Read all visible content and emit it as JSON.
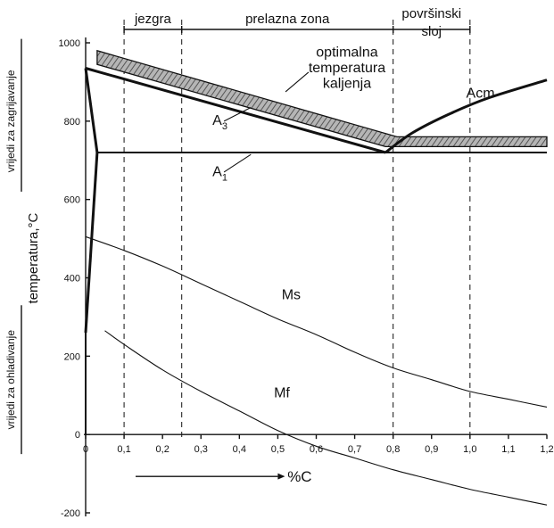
{
  "chart_data": {
    "type": "line",
    "title": "",
    "xlabel": "%C",
    "ylabel": "temperatura,°C",
    "ylabel_heating": "vrijedi za zagrijavanje",
    "ylabel_cooling": "vrijedi za ohladivanje",
    "xlim": [
      0,
      1.2
    ],
    "ylim": [
      -200,
      1000
    ],
    "x_ticks": [
      "0",
      "0,1",
      "0,2",
      "0,3",
      "0,4",
      "0,5",
      "0,6",
      "0,7",
      "0,8",
      "0,9",
      "1,0",
      "1,1",
      "1,2"
    ],
    "x_tick_values": [
      0,
      0.1,
      0.2,
      0.3,
      0.4,
      0.5,
      0.6,
      0.7,
      0.8,
      0.9,
      1.0,
      1.1,
      1.2
    ],
    "y_ticks": [
      "1000",
      "800",
      "600",
      "400",
      "200",
      "0",
      "-200"
    ],
    "y_tick_values": [
      1000,
      800,
      600,
      400,
      200,
      0,
      -200
    ],
    "zones": [
      {
        "label": "jezgra",
        "from": 0.1,
        "to": 0.25
      },
      {
        "label": "prelazna zona",
        "from": 0.25,
        "to": 0.8
      },
      {
        "label": "površinski sloj",
        "label_lines": [
          "površinski",
          "sloj"
        ],
        "from": 0.8,
        "to": 1.0
      }
    ],
    "zone_boundaries": [
      0.1,
      0.25,
      0.8,
      1.0
    ],
    "series": [
      {
        "name": "A3",
        "label_main": "A",
        "label_sub": "3",
        "x": [
          0,
          0.78
        ],
        "y": [
          935,
          720
        ]
      },
      {
        "name": "A1",
        "label_main": "A",
        "label_sub": "1",
        "x": [
          0.03,
          1.2
        ],
        "y": [
          720,
          720
        ]
      },
      {
        "name": "Acm",
        "x": [
          0.78,
          0.85,
          0.95,
          1.05,
          1.2
        ],
        "y": [
          720,
          770,
          820,
          860,
          905
        ]
      },
      {
        "name": "Ms",
        "x": [
          0,
          0.1,
          0.2,
          0.3,
          0.4,
          0.5,
          0.6,
          0.7,
          0.8,
          0.9,
          1.0,
          1.1,
          1.2
        ],
        "y": [
          505,
          470,
          430,
          385,
          340,
          295,
          255,
          210,
          170,
          140,
          110,
          90,
          70
        ]
      },
      {
        "name": "Mf",
        "x": [
          0.05,
          0.1,
          0.2,
          0.3,
          0.4,
          0.5,
          0.6,
          0.7,
          0.8,
          0.9,
          1.0,
          1.1,
          1.2
        ],
        "y": [
          265,
          230,
          165,
          110,
          60,
          10,
          -30,
          -60,
          -90,
          -115,
          -140,
          -160,
          -180
        ]
      }
    ],
    "left_boundary": {
      "x": [
        0,
        0.03,
        0.03,
        0,
        0.03
      ],
      "y": [
        935,
        720,
        720,
        260,
        720
      ]
    },
    "band_label_lines": [
      "optimalna",
      "temperatura",
      "kaljenja"
    ],
    "optimal_hardening_band": {
      "upper": {
        "x": [
          0.03,
          0.81,
          1.2
        ],
        "y": [
          980,
          760,
          760
        ]
      },
      "lower": {
        "x": [
          0.03,
          0.78,
          1.2
        ],
        "y": [
          945,
          735,
          735
        ]
      }
    }
  }
}
